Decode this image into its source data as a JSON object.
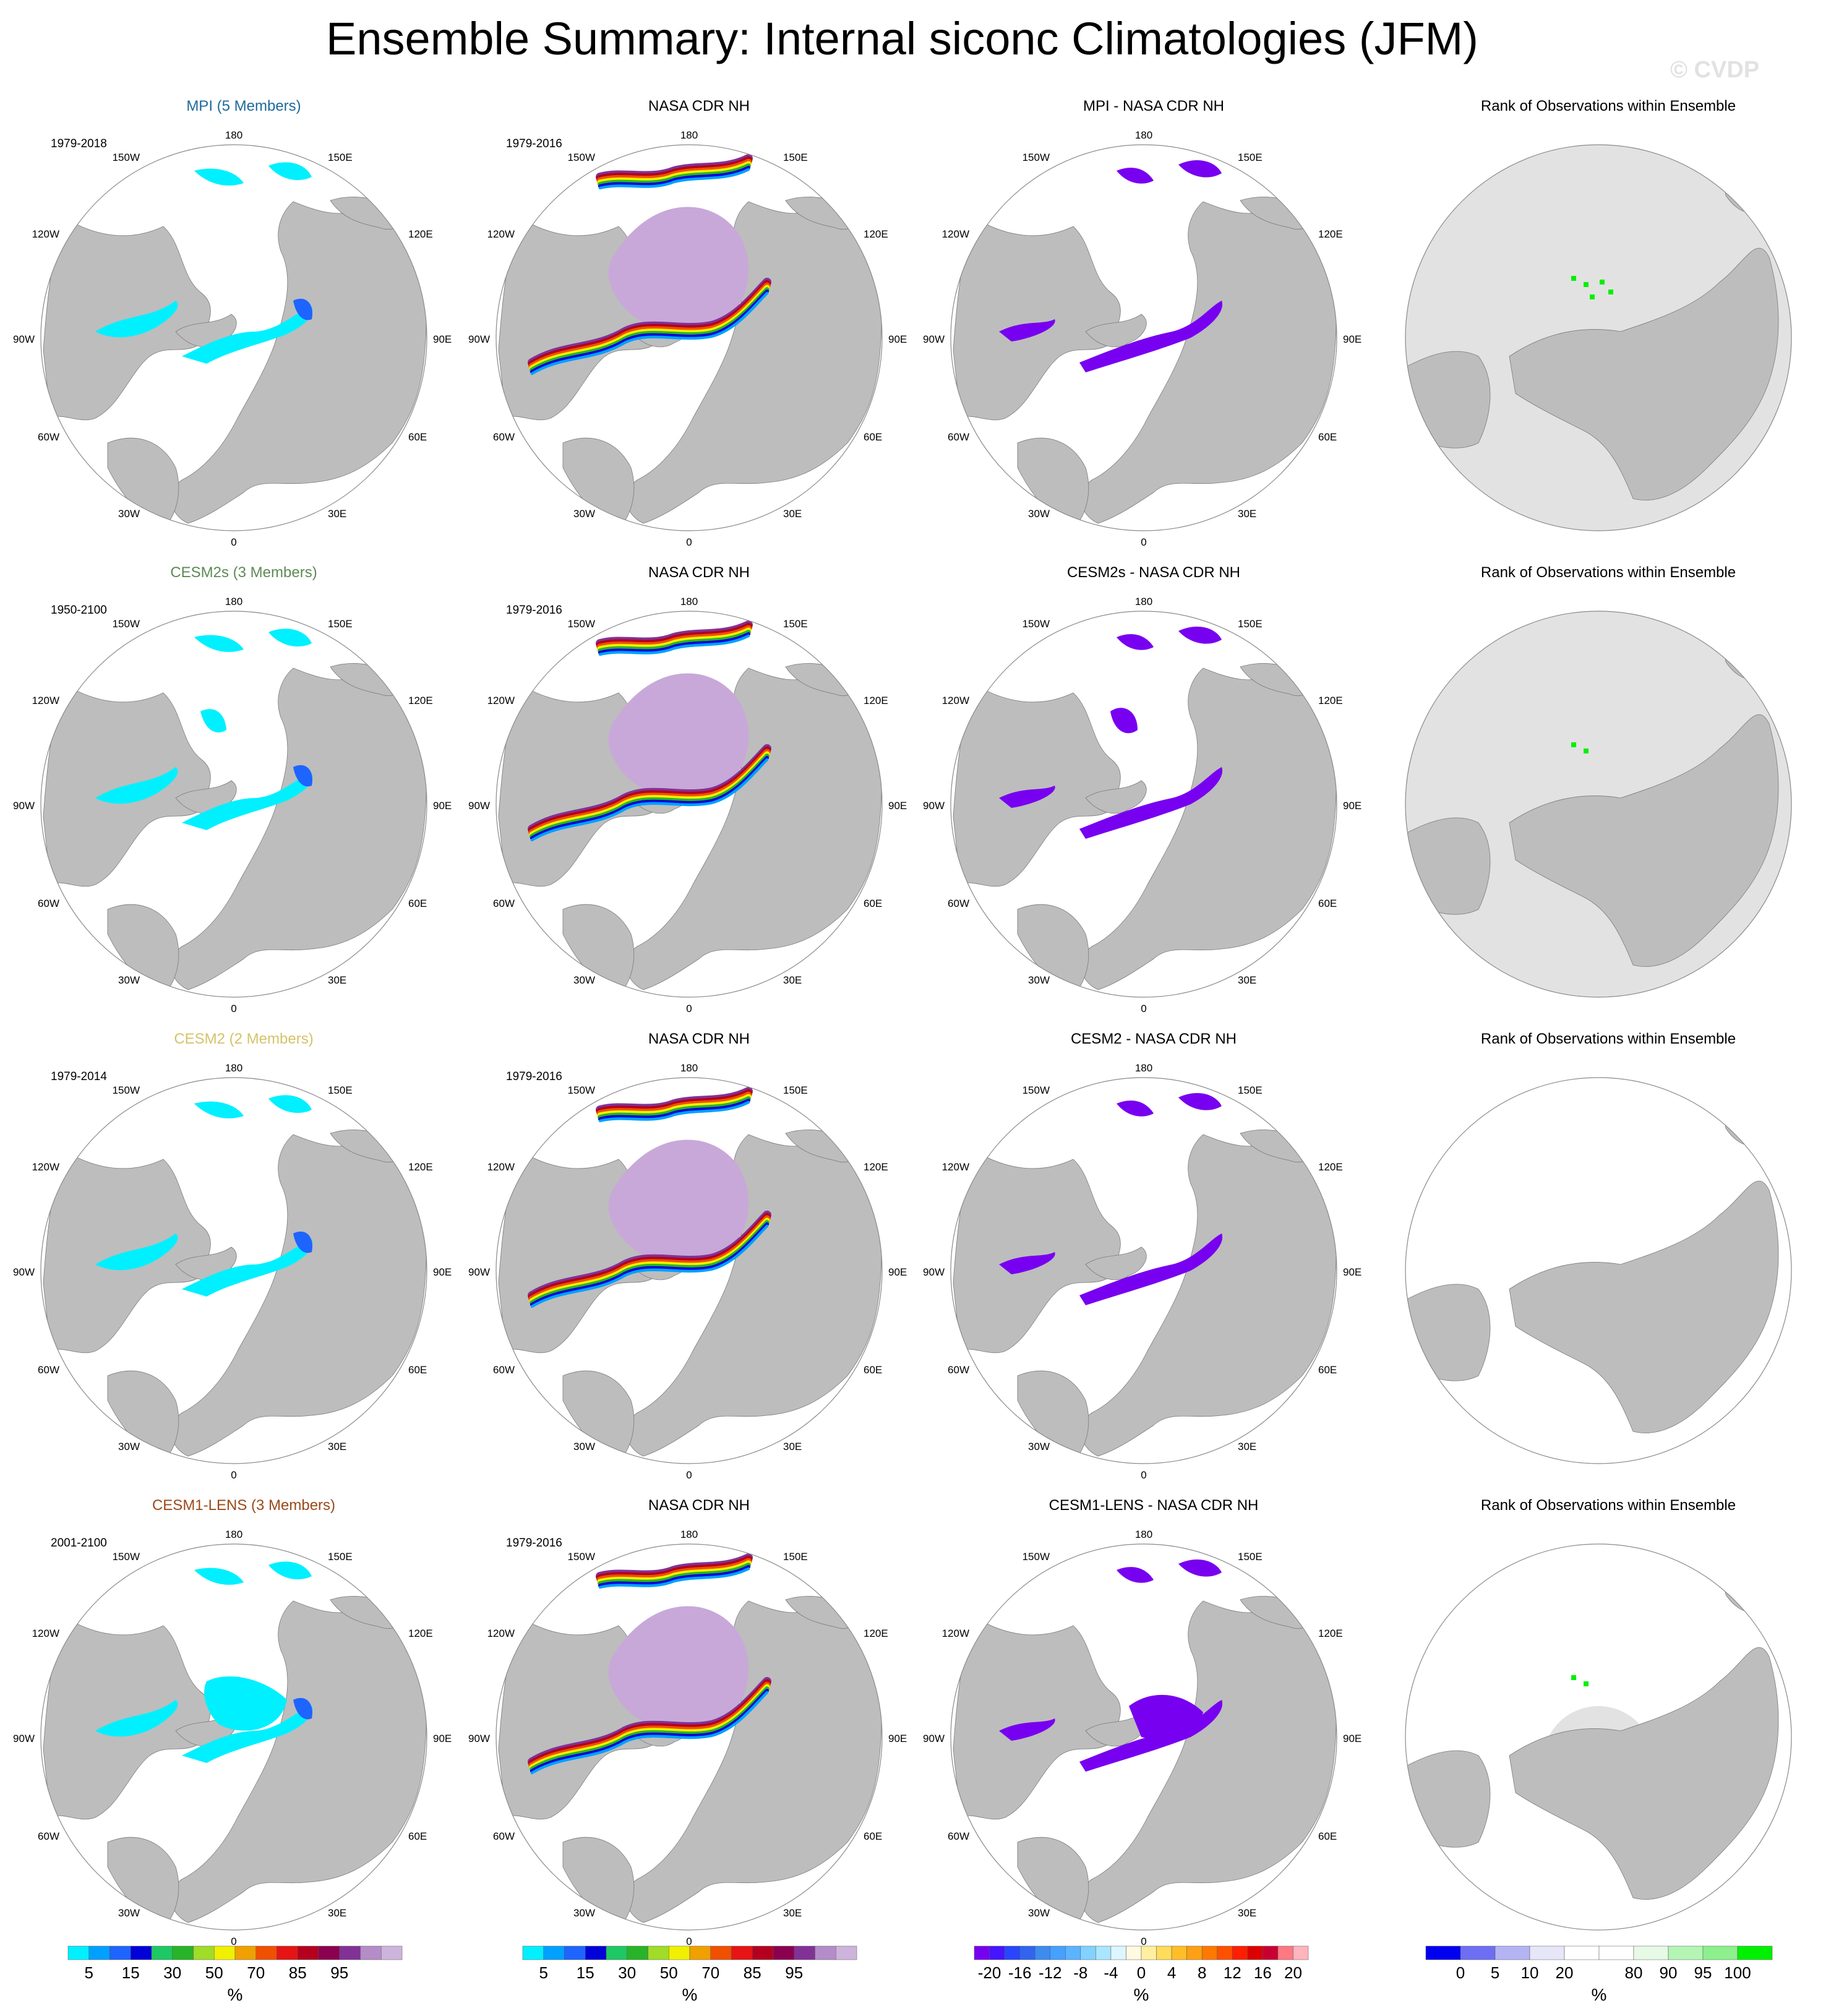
{
  "title": "Ensemble Summary: Internal siconc Climatologies (JFM)",
  "watermark": "© CVDP",
  "lon_labels": {
    "top": "180",
    "tr": "150E",
    "tl": "150W",
    "r1": "120E",
    "l1": "120W",
    "r2": "90E",
    "l2": "90W",
    "r3": "60E",
    "l3": "60W",
    "br": "30E",
    "bl": "30W",
    "bottom": "0"
  },
  "rows": [
    {
      "model_title": "MPI (5 Members)",
      "model_period": "1979-2018",
      "obs_title": "NASA CDR NH",
      "obs_period": "1979-2016",
      "diff_title": "MPI - NASA CDR NH",
      "rank_title": "Rank of Observations within Ensemble"
    },
    {
      "model_title": "CESM2s (3 Members)",
      "model_period": "1950-2100",
      "obs_title": "NASA CDR NH",
      "obs_period": "1979-2016",
      "diff_title": "CESM2s - NASA CDR NH",
      "rank_title": "Rank of Observations within Ensemble"
    },
    {
      "model_title": "CESM2 (2 Members)",
      "model_period": "1979-2014",
      "obs_title": "NASA CDR NH",
      "obs_period": "1979-2016",
      "diff_title": "CESM2 - NASA CDR NH",
      "rank_title": "Rank of Observations within Ensemble"
    },
    {
      "model_title": "CESM1-LENS (3 Members)",
      "model_period": "2001-2100",
      "obs_title": "NASA CDR NH",
      "obs_period": "1979-2016",
      "diff_title": "CESM1-LENS - NASA CDR NH",
      "rank_title": "Rank of Observations within Ensemble"
    }
  ],
  "colorbars": {
    "siconc": {
      "unit": "%",
      "labels": [
        "5",
        "15",
        "30",
        "50",
        "70",
        "85",
        "95"
      ],
      "label_after_box": [
        1,
        3,
        5,
        7,
        9,
        11,
        13
      ],
      "colors": [
        "#00f0ff",
        "#00a0ff",
        "#1e64ff",
        "#0000d8",
        "#1ec864",
        "#28b428",
        "#a0dc28",
        "#f0f000",
        "#f0a000",
        "#f05000",
        "#e61414",
        "#b4001e",
        "#8c0050",
        "#823296",
        "#b48cc8",
        "#cdb4dc"
      ]
    },
    "siconc2": {
      "unit": "%",
      "labels": [
        "5",
        "15",
        "30",
        "50",
        "70",
        "85",
        "95"
      ],
      "label_after_box": [
        1,
        3,
        5,
        7,
        9,
        11,
        13
      ],
      "colors": [
        "#00f0ff",
        "#00a0ff",
        "#1e64ff",
        "#0000d8",
        "#1ec864",
        "#28b428",
        "#a0dc28",
        "#f0f000",
        "#f0a000",
        "#f05000",
        "#e61414",
        "#b4001e",
        "#8c0050",
        "#823296",
        "#b48cc8",
        "#cdb4dc"
      ]
    },
    "diff": {
      "unit": "%",
      "labels": [
        "-20",
        "-16",
        "-12",
        "-8",
        "-4",
        "0",
        "4",
        "8",
        "12",
        "16",
        "20"
      ],
      "label_after_box": [
        1,
        3,
        5,
        7,
        9,
        11,
        13,
        15,
        17,
        19,
        21
      ],
      "colors": [
        "#7800f0",
        "#4614ff",
        "#2846ff",
        "#3264f0",
        "#3c8cf0",
        "#46a0ff",
        "#5ab4ff",
        "#82d2ff",
        "#aae6ff",
        "#dcf5ff",
        "#fffae0",
        "#fff0a0",
        "#ffdc5a",
        "#ffbe28",
        "#ffa014",
        "#ff7800",
        "#ff5000",
        "#ff1e00",
        "#dc0000",
        "#c80032",
        "#ff7882",
        "#ffb4be"
      ]
    },
    "rank": {
      "unit": "%",
      "labels": [
        "0",
        "5",
        "10",
        "20",
        "80",
        "90",
        "95",
        "100"
      ],
      "label_after_box": [
        1,
        2,
        3,
        4,
        6,
        7,
        8,
        9
      ],
      "colors": [
        "#0000f0",
        "#6e6ef5",
        "#b4b4f5",
        "#e6e6f8",
        "#ffffff",
        "#ffffff",
        "#e6fae6",
        "#b4f5b4",
        "#8cf08c",
        "#00f000"
      ]
    }
  },
  "colors": {
    "land": "#bdbdbd",
    "ocean": "#ffffff",
    "obs_core": "#c8a8d8",
    "rank_ocean": "#e2e2e2"
  }
}
